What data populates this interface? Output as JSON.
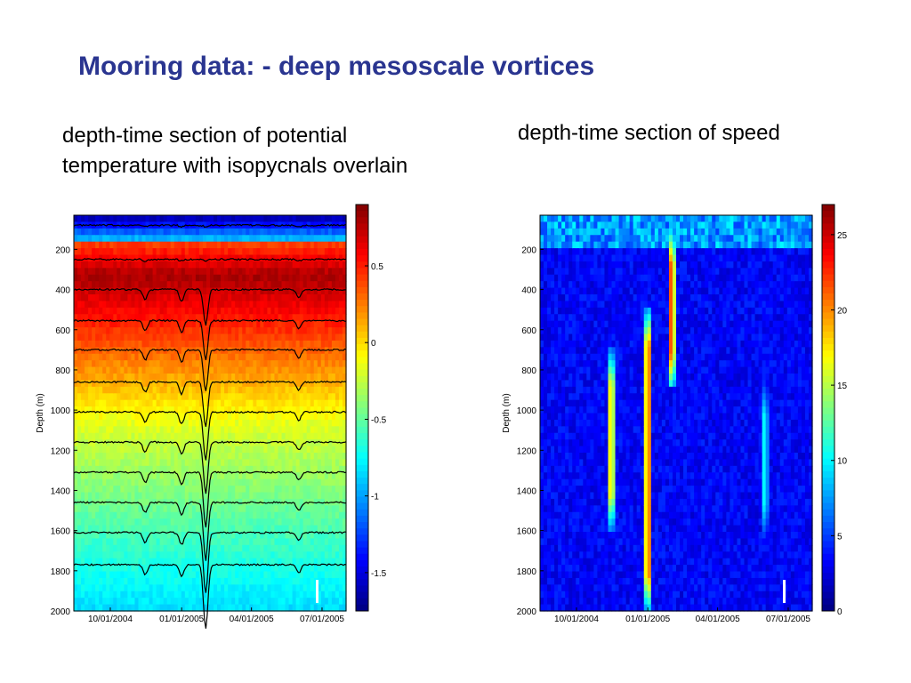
{
  "slide": {
    "title": "Mooring data: - deep mesoscale vortices",
    "caption_left": "depth-time section of potential temperature with isopycnals overlain",
    "caption_right": "depth-time section of speed"
  },
  "chart_data": [
    {
      "type": "heatmap",
      "title": "",
      "ylabel": "Depth (m)",
      "xlabel": "",
      "x_tick_labels": [
        "10/01/2004",
        "01/01/2005",
        "04/01/2005",
        "07/01/2005"
      ],
      "y_tick_labels": [
        "200",
        "400",
        "600",
        "800",
        "1000",
        "1200",
        "1400",
        "1600",
        "1800",
        "2000"
      ],
      "y_ticks": [
        200,
        400,
        600,
        800,
        1000,
        1200,
        1400,
        1600,
        1800,
        2000
      ],
      "ylim": [
        2000,
        30
      ],
      "y_reversed": true,
      "colorbar": {
        "range": [
          -1.75,
          0.9
        ],
        "tick_values": [
          0.5,
          0,
          -0.5,
          -1,
          -1.5
        ],
        "tick_labels": [
          "0.5",
          "0",
          "-0.5",
          "-1",
          "-1.5"
        ],
        "colormap": "jet"
      },
      "overlay": "isopycnals",
      "isopycnal_depths": [
        80,
        250,
        400,
        555,
        700,
        860,
        1010,
        1160,
        1310,
        1460,
        1610,
        1770
      ],
      "eddy_dates": [
        "11/15/2004",
        "01/01/2005",
        "02/01/2005",
        "06/01/2005"
      ]
    },
    {
      "type": "heatmap",
      "title": "",
      "ylabel": "Depth (m)",
      "xlabel": "",
      "x_tick_labels": [
        "10/01/2004",
        "01/01/2005",
        "04/01/2005",
        "07/01/2005"
      ],
      "y_tick_labels": [
        "200",
        "400",
        "600",
        "800",
        "1000",
        "1200",
        "1400",
        "1600",
        "1800",
        "2000"
      ],
      "y_ticks": [
        200,
        400,
        600,
        800,
        1000,
        1200,
        1400,
        1600,
        1800,
        2000
      ],
      "ylim": [
        2000,
        30
      ],
      "y_reversed": true,
      "colorbar": {
        "range": [
          0,
          27
        ],
        "tick_values": [
          25,
          20,
          15,
          10,
          5,
          0
        ],
        "tick_labels": [
          "25",
          "20",
          "15",
          "10",
          "5",
          "0"
        ],
        "colormap": "jet"
      },
      "high_speed_features": [
        {
          "date": "11/15/2004",
          "top_depth": 700,
          "bottom_depth": 1600,
          "peak_speed": 22
        },
        {
          "date": "01/01/2005",
          "top_depth": 500,
          "bottom_depth": 2000,
          "peak_speed": 26
        },
        {
          "date": "02/01/2005",
          "top_depth": 100,
          "bottom_depth": 900,
          "peak_speed": 26
        },
        {
          "date": "06/01/2005",
          "top_depth": 850,
          "bottom_depth": 1650,
          "peak_speed": 12
        }
      ]
    }
  ]
}
